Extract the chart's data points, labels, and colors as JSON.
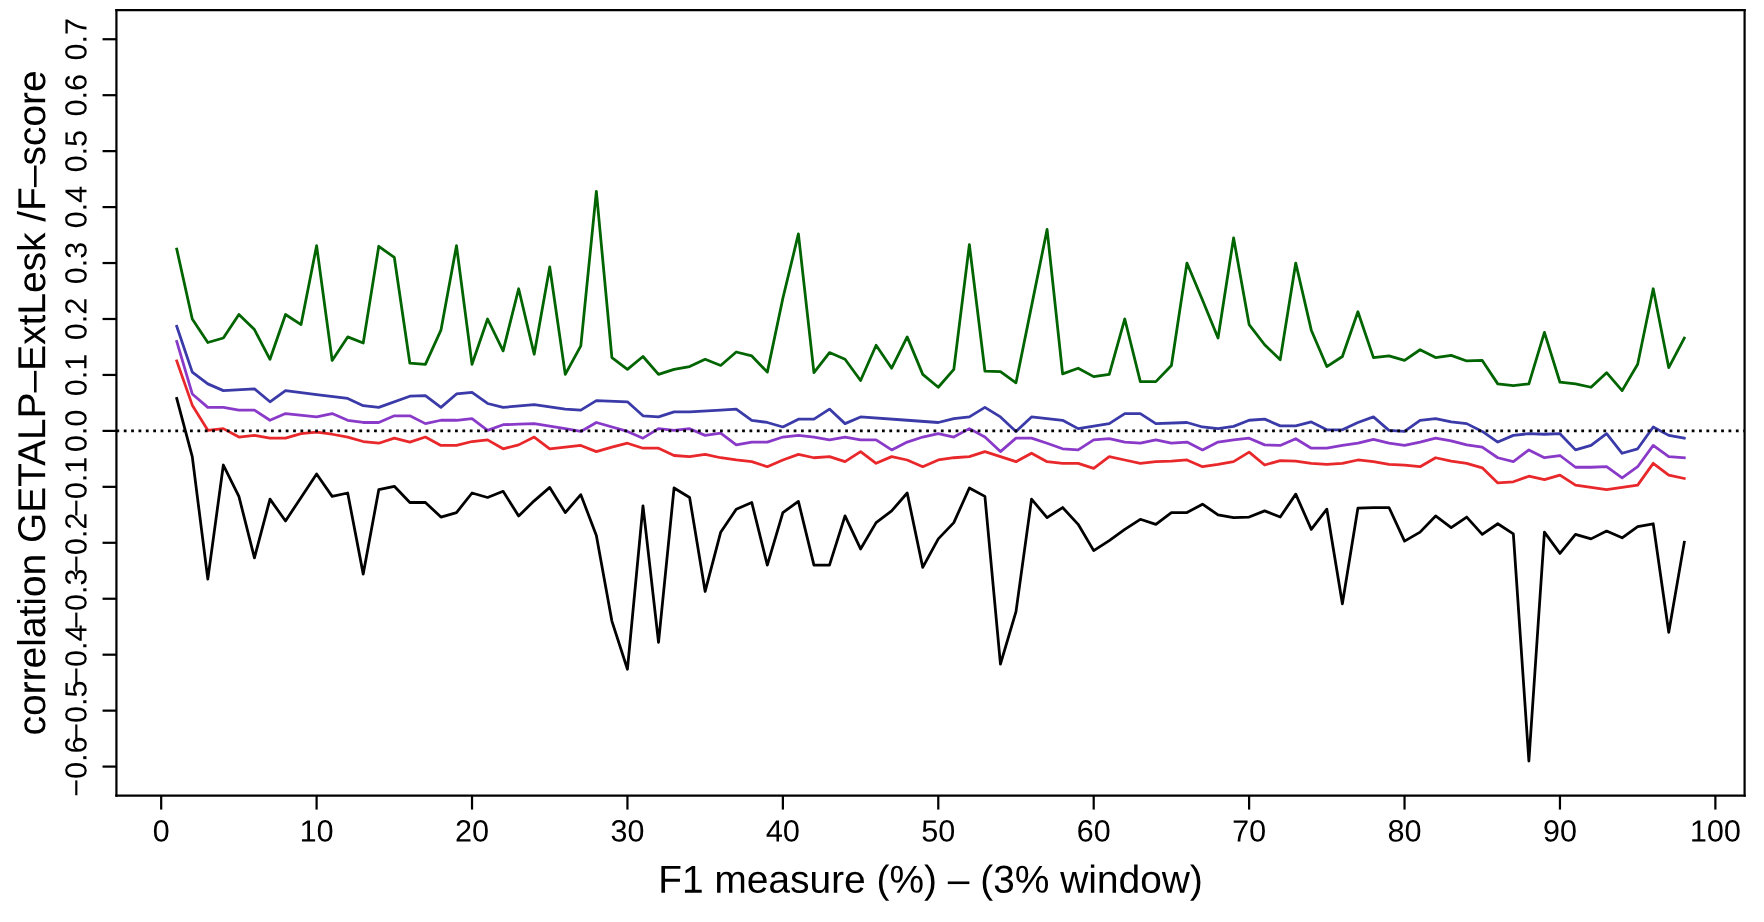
{
  "chart_data": {
    "type": "line",
    "xlabel": "F1 measure (%) – (3% window)",
    "ylabel": "correlation GETALP–ExtLesk /F–score",
    "xlim": [
      -2.88,
      101.88
    ],
    "ylim": [
      -0.652,
      0.752
    ],
    "xticks": [
      0,
      10,
      20,
      30,
      40,
      50,
      60,
      70,
      80,
      90,
      100
    ],
    "yticks": [
      {
        "value": -0.6,
        "label": "−0.6"
      },
      {
        "value": -0.5,
        "label": "−0.5"
      },
      {
        "value": -0.4,
        "label": "−0.4"
      },
      {
        "value": -0.3,
        "label": "−0.3"
      },
      {
        "value": -0.2,
        "label": "−0.2"
      },
      {
        "value": -0.1,
        "label": "−0.1"
      },
      {
        "value": 0.0,
        "label": "0.0"
      },
      {
        "value": 0.1,
        "label": "0.1"
      },
      {
        "value": 0.2,
        "label": "0.2"
      },
      {
        "value": 0.3,
        "label": "0.3"
      },
      {
        "value": 0.4,
        "label": "0.4"
      },
      {
        "value": 0.5,
        "label": "0.5"
      },
      {
        "value": 0.6,
        "label": "0.6"
      },
      {
        "value": 0.7,
        "label": "0.7"
      }
    ],
    "grid": false,
    "legend": false,
    "marker": "none",
    "line_style": "solid",
    "ref_lines": [
      {
        "axis": "y",
        "value": 0,
        "label": null,
        "color": "#000000",
        "line_style": "dotted"
      }
    ],
    "series": [
      {
        "color": "#006400",
        "x": [
          1,
          2,
          3,
          4,
          5,
          6,
          7,
          8,
          9,
          10,
          11,
          12,
          13,
          14,
          15,
          16,
          17,
          18,
          19,
          20,
          21,
          22,
          23,
          24,
          25,
          26,
          27,
          28,
          29,
          30,
          31,
          32,
          33,
          34,
          35,
          36,
          37,
          38,
          39,
          40,
          41,
          42,
          43,
          44,
          45,
          46,
          47,
          48,
          49,
          50,
          51,
          52,
          53,
          54,
          55,
          56,
          57,
          58,
          59,
          60,
          61,
          62,
          63,
          64,
          65,
          66,
          67,
          68,
          69,
          70,
          71,
          72,
          73,
          74,
          75,
          76,
          77,
          78,
          79,
          80,
          81,
          82,
          83,
          84,
          85,
          86,
          87,
          88,
          89,
          90,
          91,
          92,
          93,
          94,
          95,
          96,
          97,
          98
        ],
        "values": [
          0.325,
          0.2,
          0.158,
          0.166,
          0.208,
          0.181,
          0.128,
          0.208,
          0.19,
          0.331,
          0.126,
          0.168,
          0.157,
          0.33,
          0.31,
          0.121,
          0.119,
          0.18,
          0.331,
          0.119,
          0.2,
          0.143,
          0.254,
          0.137,
          0.293,
          0.101,
          0.152,
          0.428,
          0.131,
          0.11,
          0.133,
          0.101,
          0.11,
          0.115,
          0.128,
          0.117,
          0.141,
          0.134,
          0.105,
          0.237,
          0.352,
          0.104,
          0.14,
          0.128,
          0.09,
          0.153,
          0.112,
          0.168,
          0.101,
          0.078,
          0.11,
          0.333,
          0.107,
          0.106,
          0.086,
          0.223,
          0.36,
          0.102,
          0.112,
          0.097,
          0.101,
          0.2,
          0.088,
          0.088,
          0.117,
          0.3,
          0.234,
          0.166,
          0.345,
          0.19,
          0.154,
          0.127,
          0.3,
          0.18,
          0.115,
          0.133,
          0.213,
          0.131,
          0.134,
          0.126,
          0.145,
          0.131,
          0.135,
          0.125,
          0.126,
          0.084,
          0.081,
          0.084,
          0.176,
          0.087,
          0.084,
          0.078,
          0.104,
          0.072,
          0.119,
          0.254,
          0.113,
          0.166
        ]
      },
      {
        "color": "#3a3aa8",
        "x": [
          1,
          2,
          3,
          4,
          6,
          7,
          8,
          10,
          12,
          13,
          14,
          16,
          17,
          18,
          19,
          20,
          21,
          22,
          24,
          26,
          27,
          28,
          30,
          31,
          32,
          33,
          34,
          36,
          37,
          38,
          39,
          40,
          41,
          42,
          43,
          44,
          45,
          48,
          50,
          51,
          52,
          53,
          54,
          55,
          56,
          57,
          58,
          59,
          61,
          62,
          63,
          64,
          66,
          67,
          68,
          69,
          70,
          71,
          72,
          73,
          74,
          75,
          76,
          77,
          78,
          79,
          80,
          81,
          82,
          83,
          84,
          85,
          86,
          87,
          88,
          89,
          90,
          91,
          92,
          93,
          94,
          95,
          96,
          97,
          98
        ],
        "values": [
          0.187,
          0.105,
          0.084,
          0.072,
          0.075,
          0.052,
          0.072,
          0.065,
          0.058,
          0.045,
          0.042,
          0.062,
          0.063,
          0.042,
          0.066,
          0.069,
          0.049,
          0.042,
          0.047,
          0.039,
          0.037,
          0.054,
          0.052,
          0.027,
          0.025,
          0.034,
          0.034,
          0.037,
          0.039,
          0.019,
          0.015,
          0.007,
          0.021,
          0.021,
          0.039,
          0.013,
          0.025,
          0.019,
          0.015,
          0.022,
          0.025,
          0.042,
          0.025,
          -0.001,
          0.025,
          0.022,
          0.019,
          0.004,
          0.013,
          0.031,
          0.031,
          0.013,
          0.015,
          0.007,
          0.004,
          0.008,
          0.019,
          0.021,
          0.009,
          0.009,
          0.016,
          0.002,
          0.002,
          0.015,
          0.025,
          0.001,
          -0.001,
          0.019,
          0.022,
          0.016,
          0.013,
          -0.001,
          -0.02,
          -0.008,
          -0.005,
          -0.006,
          -0.005,
          -0.034,
          -0.026,
          -0.005,
          -0.04,
          -0.032,
          0.007,
          -0.008,
          -0.013
        ]
      },
      {
        "color": "#8a3ac8",
        "x": [
          1,
          2,
          3,
          4,
          5,
          6,
          7,
          8,
          10,
          11,
          12,
          13,
          14,
          15,
          16,
          17,
          18,
          19,
          20,
          21,
          22,
          23,
          24,
          26,
          27,
          28,
          30,
          31,
          32,
          33,
          34,
          35,
          36,
          37,
          38,
          39,
          40,
          41,
          42,
          43,
          44,
          45,
          46,
          47,
          48,
          49,
          50,
          51,
          52,
          53,
          54,
          55,
          56,
          57,
          58,
          59,
          60,
          61,
          62,
          63,
          64,
          65,
          66,
          67,
          68,
          69,
          70,
          71,
          72,
          73,
          74,
          75,
          76,
          77,
          78,
          79,
          80,
          81,
          82,
          83,
          84,
          85,
          86,
          87,
          88,
          89,
          90,
          91,
          92,
          93,
          94,
          95,
          96,
          97,
          98
        ],
        "values": [
          0.16,
          0.066,
          0.042,
          0.042,
          0.037,
          0.037,
          0.019,
          0.031,
          0.025,
          0.031,
          0.019,
          0.015,
          0.015,
          0.027,
          0.027,
          0.013,
          0.019,
          0.019,
          0.022,
          0.001,
          0.011,
          0.012,
          0.013,
          0.004,
          -0.001,
          0.015,
          -0.001,
          -0.013,
          0.004,
          0.001,
          0.004,
          -0.008,
          -0.004,
          -0.025,
          -0.02,
          -0.02,
          -0.011,
          -0.008,
          -0.011,
          -0.016,
          -0.011,
          -0.016,
          -0.016,
          -0.034,
          -0.02,
          -0.011,
          -0.005,
          -0.011,
          0.004,
          -0.011,
          -0.037,
          -0.013,
          -0.013,
          -0.022,
          -0.032,
          -0.034,
          -0.016,
          -0.014,
          -0.02,
          -0.022,
          -0.016,
          -0.022,
          -0.02,
          -0.034,
          -0.02,
          -0.016,
          -0.013,
          -0.025,
          -0.026,
          -0.014,
          -0.031,
          -0.031,
          -0.026,
          -0.022,
          -0.015,
          -0.022,
          -0.026,
          -0.02,
          -0.013,
          -0.018,
          -0.025,
          -0.029,
          -0.048,
          -0.055,
          -0.034,
          -0.048,
          -0.044,
          -0.065,
          -0.065,
          -0.064,
          -0.084,
          -0.064,
          -0.026,
          -0.046,
          -0.048
        ]
      },
      {
        "color": "#e8282a",
        "x": [
          1,
          2,
          3,
          4,
          5,
          6,
          7,
          8,
          9,
          10,
          11,
          12,
          13,
          14,
          15,
          16,
          17,
          18,
          19,
          20,
          21,
          22,
          23,
          24,
          25,
          26,
          27,
          28,
          29,
          30,
          31,
          32,
          33,
          34,
          35,
          36,
          37,
          38,
          39,
          40,
          41,
          42,
          43,
          44,
          45,
          46,
          47,
          48,
          49,
          50,
          51,
          52,
          53,
          54,
          55,
          56,
          57,
          58,
          59,
          60,
          61,
          62,
          63,
          64,
          65,
          66,
          67,
          68,
          69,
          70,
          71,
          72,
          73,
          74,
          75,
          76,
          77,
          78,
          79,
          80,
          81,
          82,
          83,
          84,
          85,
          86,
          87,
          88,
          89,
          90,
          91,
          92,
          93,
          94,
          95,
          96,
          97,
          98
        ],
        "values": [
          0.125,
          0.046,
          0.001,
          0.004,
          -0.011,
          -0.008,
          -0.013,
          -0.013,
          -0.005,
          -0.002,
          -0.006,
          -0.011,
          -0.019,
          -0.022,
          -0.013,
          -0.02,
          -0.011,
          -0.026,
          -0.026,
          -0.019,
          -0.016,
          -0.032,
          -0.025,
          -0.011,
          -0.032,
          -0.029,
          -0.026,
          -0.037,
          -0.029,
          -0.022,
          -0.031,
          -0.031,
          -0.044,
          -0.046,
          -0.042,
          -0.048,
          -0.052,
          -0.055,
          -0.064,
          -0.052,
          -0.042,
          -0.048,
          -0.046,
          -0.055,
          -0.037,
          -0.058,
          -0.046,
          -0.052,
          -0.064,
          -0.052,
          -0.048,
          -0.046,
          -0.037,
          -0.046,
          -0.055,
          -0.04,
          -0.055,
          -0.058,
          -0.058,
          -0.067,
          -0.046,
          -0.052,
          -0.058,
          -0.055,
          -0.054,
          -0.052,
          -0.064,
          -0.06,
          -0.055,
          -0.038,
          -0.061,
          -0.053,
          -0.054,
          -0.058,
          -0.06,
          -0.058,
          -0.052,
          -0.055,
          -0.06,
          -0.061,
          -0.064,
          -0.048,
          -0.054,
          -0.058,
          -0.066,
          -0.093,
          -0.091,
          -0.081,
          -0.087,
          -0.079,
          -0.097,
          -0.101,
          -0.105,
          -0.101,
          -0.097,
          -0.058,
          -0.079,
          -0.085
        ]
      },
      {
        "color": "#000000",
        "x": [
          1,
          2,
          3,
          4,
          5,
          6,
          7,
          8,
          9,
          10,
          11,
          12,
          13,
          14,
          15,
          16,
          17,
          18,
          19,
          20,
          21,
          22,
          23,
          24,
          25,
          26,
          27,
          28,
          29,
          30,
          31,
          32,
          33,
          34,
          35,
          36,
          37,
          38,
          39,
          40,
          41,
          42,
          43,
          44,
          45,
          46,
          47,
          48,
          49,
          50,
          51,
          52,
          53,
          54,
          55,
          56,
          57,
          58,
          59,
          60,
          61,
          62,
          63,
          64,
          65,
          66,
          67,
          68,
          69,
          70,
          71,
          72,
          73,
          74,
          75,
          76,
          77,
          78,
          79,
          80,
          81,
          82,
          83,
          84,
          85,
          86,
          87,
          88,
          89,
          90,
          91,
          92,
          93,
          94,
          95,
          96,
          97,
          98
        ],
        "values": [
          0.058,
          -0.046,
          -0.265,
          -0.061,
          -0.117,
          -0.227,
          -0.122,
          -0.161,
          -0.119,
          -0.077,
          -0.117,
          -0.111,
          -0.256,
          -0.105,
          -0.099,
          -0.128,
          -0.128,
          -0.154,
          -0.146,
          -0.111,
          -0.119,
          -0.108,
          -0.152,
          -0.125,
          -0.101,
          -0.146,
          -0.114,
          -0.187,
          -0.34,
          -0.426,
          -0.134,
          -0.378,
          -0.102,
          -0.119,
          -0.287,
          -0.181,
          -0.14,
          -0.128,
          -0.24,
          -0.146,
          -0.126,
          -0.24,
          -0.24,
          -0.152,
          -0.211,
          -0.164,
          -0.143,
          -0.111,
          -0.244,
          -0.193,
          -0.164,
          -0.102,
          -0.117,
          -0.417,
          -0.323,
          -0.122,
          -0.155,
          -0.137,
          -0.167,
          -0.214,
          -0.196,
          -0.176,
          -0.158,
          -0.167,
          -0.146,
          -0.146,
          -0.131,
          -0.15,
          -0.155,
          -0.154,
          -0.143,
          -0.154,
          -0.113,
          -0.176,
          -0.14,
          -0.309,
          -0.138,
          -0.137,
          -0.137,
          -0.197,
          -0.181,
          -0.152,
          -0.173,
          -0.154,
          -0.185,
          -0.166,
          -0.184,
          -0.59,
          -0.181,
          -0.219,
          -0.185,
          -0.193,
          -0.179,
          -0.191,
          -0.171,
          -0.166,
          -0.36,
          -0.199
        ]
      }
    ]
  }
}
